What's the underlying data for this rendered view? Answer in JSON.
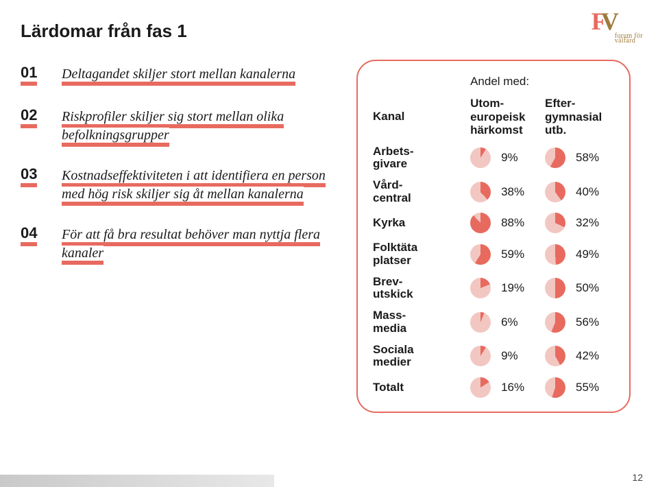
{
  "title": "Lärdomar från fas 1",
  "accent_color": "#e86a5f",
  "pie_remainder_color": "#f2c7c2",
  "logo": {
    "letters": "FV",
    "sub1": "forum för",
    "sub2": "välfärd"
  },
  "points": [
    {
      "num": "01",
      "text": "Deltagandet skiljer stort mellan kanalerna"
    },
    {
      "num": "02",
      "text": "Riskprofiler skiljer sig stort mellan olika befolkningsgrupper"
    },
    {
      "num": "03",
      "text": "Kostnadseffektiviteten i att identifiera en person med hög risk skiljer sig åt mellan kanalerna"
    },
    {
      "num": "04",
      "text": "För att få bra resultat behöver man nyttja flera kanaler"
    }
  ],
  "table": {
    "super_header": "Andel med:",
    "col_kanal": "Kanal",
    "col1": "Utom-\neuropeisk\nhärkomst",
    "col2": "Efter-\ngymnasial\nutb.",
    "rows": [
      {
        "label": "Arbets-\ngivare",
        "a": 9,
        "b": 58
      },
      {
        "label": "Vård-\ncentral",
        "a": 38,
        "b": 40
      },
      {
        "label": "Kyrka",
        "a": 88,
        "b": 32
      },
      {
        "label": "Folktäta\nplatser",
        "a": 59,
        "b": 49
      },
      {
        "label": "Brev-\nutskick",
        "a": 19,
        "b": 50
      },
      {
        "label": "Mass-\nmedia",
        "a": 6,
        "b": 56
      },
      {
        "label": "Sociala\nmedier",
        "a": 9,
        "b": 42
      },
      {
        "label": "Totalt",
        "a": 16,
        "b": 55
      }
    ]
  },
  "page_number": "12"
}
